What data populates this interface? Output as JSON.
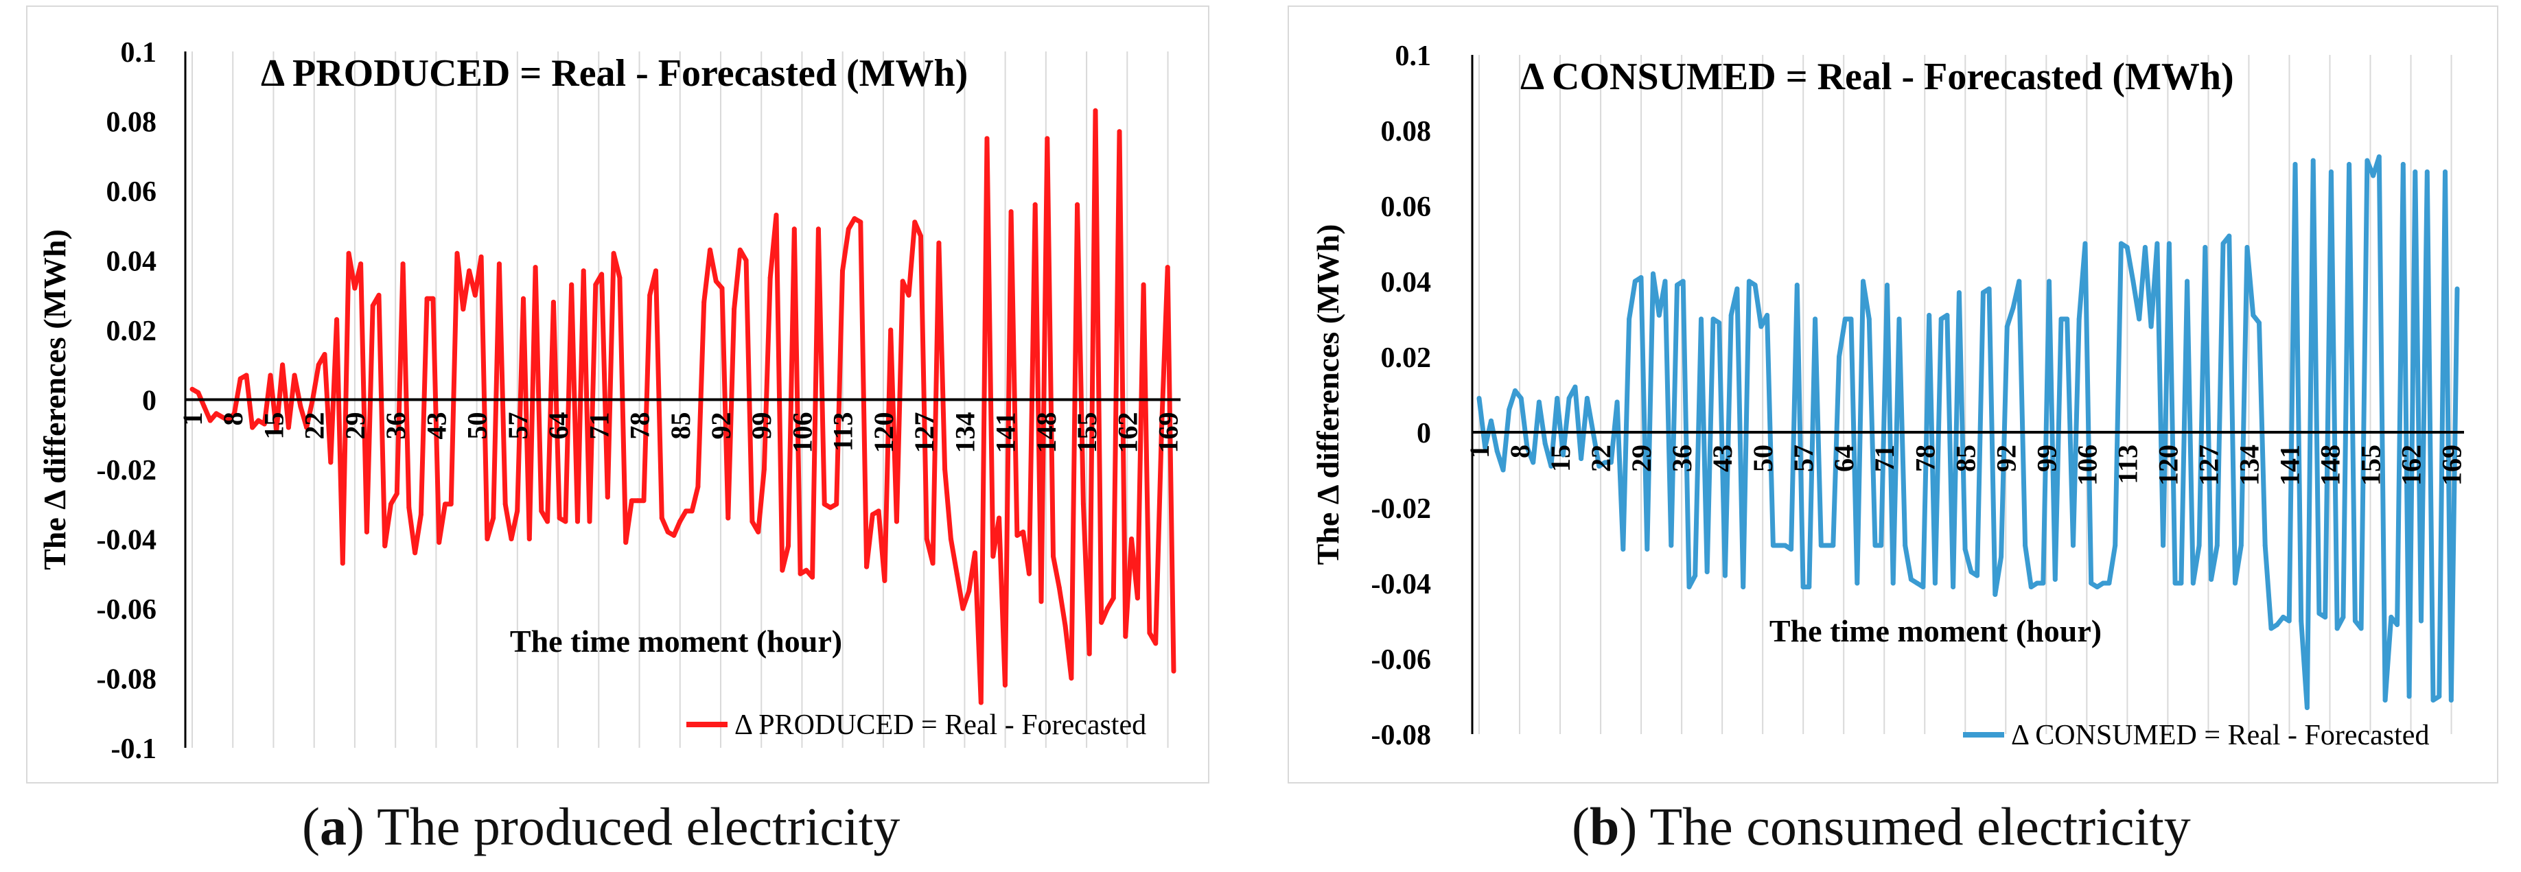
{
  "chart_data": [
    {
      "type": "line",
      "panel_label": "a",
      "caption": "The produced electricity",
      "title": "Δ PRODUCED = Real - Forecasted (MWh)",
      "xlabel": "The time moment (hour)",
      "ylabel": "The Δ differences (MWh)",
      "ylim": [
        -0.1,
        0.1
      ],
      "y_ticks": [
        "0.1",
        "0.08",
        "0.06",
        "0.04",
        "0.02",
        "0",
        "-0.02",
        "-0.04",
        "-0.06",
        "-0.08",
        "-0.1"
      ],
      "x_ticks": [
        "1",
        "8",
        "15",
        "22",
        "29",
        "36",
        "43",
        "50",
        "57",
        "64",
        "71",
        "78",
        "85",
        "92",
        "99",
        "106",
        "113",
        "120",
        "127",
        "134",
        "141",
        "148",
        "155",
        "162",
        "169"
      ],
      "legend": "Δ PRODUCED = Real - Forecasted",
      "grid": "vertical",
      "color": "#ff1a1a",
      "series": [
        {
          "name": "Δ PRODUCED = Real - Forecasted",
          "x_range": [
            1,
            170
          ],
          "values": [
            0.003,
            0.002,
            -0.002,
            -0.006,
            -0.004,
            -0.005,
            -0.006,
            -0.004,
            0.006,
            0.007,
            -0.008,
            -0.006,
            -0.007,
            0.007,
            -0.009,
            0.01,
            -0.008,
            0.007,
            -0.002,
            -0.008,
            0.0,
            0.01,
            0.013,
            -0.018,
            0.023,
            -0.047,
            0.042,
            0.032,
            0.039,
            -0.038,
            0.027,
            0.03,
            -0.042,
            -0.03,
            -0.027,
            0.039,
            -0.031,
            -0.044,
            -0.033,
            0.029,
            0.029,
            -0.041,
            -0.03,
            -0.03,
            0.042,
            0.026,
            0.037,
            0.03,
            0.041,
            -0.04,
            -0.034,
            0.039,
            -0.03,
            -0.04,
            -0.032,
            0.029,
            -0.04,
            0.038,
            -0.032,
            -0.035,
            0.028,
            -0.034,
            -0.035,
            0.033,
            -0.035,
            0.037,
            -0.035,
            0.033,
            0.036,
            -0.028,
            0.042,
            0.035,
            -0.041,
            -0.029,
            -0.029,
            -0.029,
            0.03,
            0.037,
            -0.034,
            -0.038,
            -0.039,
            -0.035,
            -0.032,
            -0.032,
            -0.025,
            0.028,
            0.043,
            0.034,
            0.032,
            -0.034,
            0.026,
            0.043,
            0.04,
            -0.035,
            -0.038,
            -0.02,
            0.035,
            0.053,
            -0.049,
            -0.042,
            0.049,
            -0.05,
            -0.049,
            -0.051,
            0.049,
            -0.03,
            -0.031,
            -0.03,
            0.037,
            0.049,
            0.052,
            0.051,
            -0.048,
            -0.033,
            -0.032,
            -0.052,
            0.02,
            -0.035,
            0.034,
            0.03,
            0.051,
            0.047,
            -0.04,
            -0.047,
            0.045,
            -0.02,
            -0.04,
            -0.05,
            -0.06,
            -0.055,
            -0.044,
            -0.087,
            0.075,
            -0.045,
            -0.034,
            -0.082,
            0.054,
            -0.039,
            -0.038,
            -0.05,
            0.056,
            -0.058,
            0.075,
            -0.045,
            -0.054,
            -0.065,
            -0.08,
            0.056,
            -0.03,
            -0.073,
            0.083,
            -0.064,
            -0.06,
            -0.057,
            0.077,
            -0.068,
            -0.04,
            -0.057,
            0.033,
            -0.067,
            -0.07,
            -0.008,
            0.038,
            -0.078
          ]
        }
      ]
    },
    {
      "type": "line",
      "panel_label": "b",
      "caption": "The consumed electricity",
      "title": "Δ CONSUMED = Real - Forecasted (MWh)",
      "xlabel": "The time moment (hour)",
      "ylabel": "The Δ differences (MWh)",
      "ylim": [
        -0.08,
        0.1
      ],
      "y_ticks": [
        "0.1",
        "0.08",
        "0.06",
        "0.04",
        "0.02",
        "0",
        "-0.02",
        "-0.04",
        "-0.06",
        "-0.08"
      ],
      "x_ticks": [
        "1",
        "8",
        "15",
        "22",
        "29",
        "36",
        "43",
        "50",
        "57",
        "64",
        "71",
        "78",
        "85",
        "92",
        "99",
        "106",
        "113",
        "120",
        "127",
        "134",
        "141",
        "148",
        "155",
        "162",
        "169"
      ],
      "legend": "Δ CONSUMED = Real - Forecasted",
      "grid": "vertical",
      "color": "#3a9bd2",
      "series": [
        {
          "name": "Δ CONSUMED = Real - Forecasted",
          "x_range": [
            1,
            170
          ],
          "values": [
            0.009,
            -0.004,
            0.003,
            -0.005,
            -0.01,
            0.006,
            0.011,
            0.009,
            -0.004,
            -0.008,
            0.008,
            -0.003,
            -0.009,
            0.009,
            -0.006,
            0.009,
            0.012,
            -0.007,
            0.009,
            0.0,
            -0.009,
            -0.008,
            -0.008,
            0.008,
            -0.031,
            0.03,
            0.04,
            0.041,
            -0.031,
            0.042,
            0.031,
            0.04,
            -0.03,
            0.039,
            0.04,
            -0.041,
            -0.038,
            0.03,
            -0.037,
            0.03,
            0.029,
            -0.038,
            0.031,
            0.038,
            -0.041,
            0.04,
            0.039,
            0.028,
            0.031,
            -0.03,
            -0.03,
            -0.03,
            -0.031,
            0.039,
            -0.041,
            -0.041,
            0.03,
            -0.03,
            -0.03,
            -0.03,
            0.02,
            0.03,
            0.03,
            -0.04,
            0.04,
            0.03,
            -0.03,
            -0.03,
            0.039,
            -0.04,
            0.03,
            -0.03,
            -0.039,
            -0.04,
            -0.041,
            0.031,
            -0.04,
            0.03,
            0.031,
            -0.041,
            0.037,
            -0.031,
            -0.037,
            -0.038,
            0.037,
            0.038,
            -0.043,
            -0.033,
            0.028,
            0.033,
            0.04,
            -0.03,
            -0.041,
            -0.04,
            -0.04,
            0.04,
            -0.039,
            0.03,
            0.03,
            -0.03,
            0.03,
            0.05,
            -0.04,
            -0.041,
            -0.04,
            -0.04,
            -0.03,
            0.05,
            0.049,
            0.04,
            0.03,
            0.049,
            0.028,
            0.05,
            -0.03,
            0.05,
            -0.04,
            -0.04,
            0.04,
            -0.04,
            -0.03,
            0.049,
            -0.039,
            -0.03,
            0.05,
            0.052,
            -0.04,
            -0.03,
            0.049,
            0.031,
            0.029,
            -0.03,
            -0.052,
            -0.051,
            -0.049,
            -0.05,
            0.071,
            -0.05,
            -0.073,
            0.072,
            -0.048,
            -0.049,
            0.069,
            -0.052,
            -0.049,
            0.071,
            -0.05,
            -0.052,
            0.072,
            0.068,
            0.073,
            -0.071,
            -0.049,
            -0.051,
            0.071,
            -0.07,
            0.069,
            -0.05,
            0.069,
            -0.071,
            -0.07,
            0.069,
            -0.071,
            0.038
          ]
        }
      ]
    }
  ]
}
